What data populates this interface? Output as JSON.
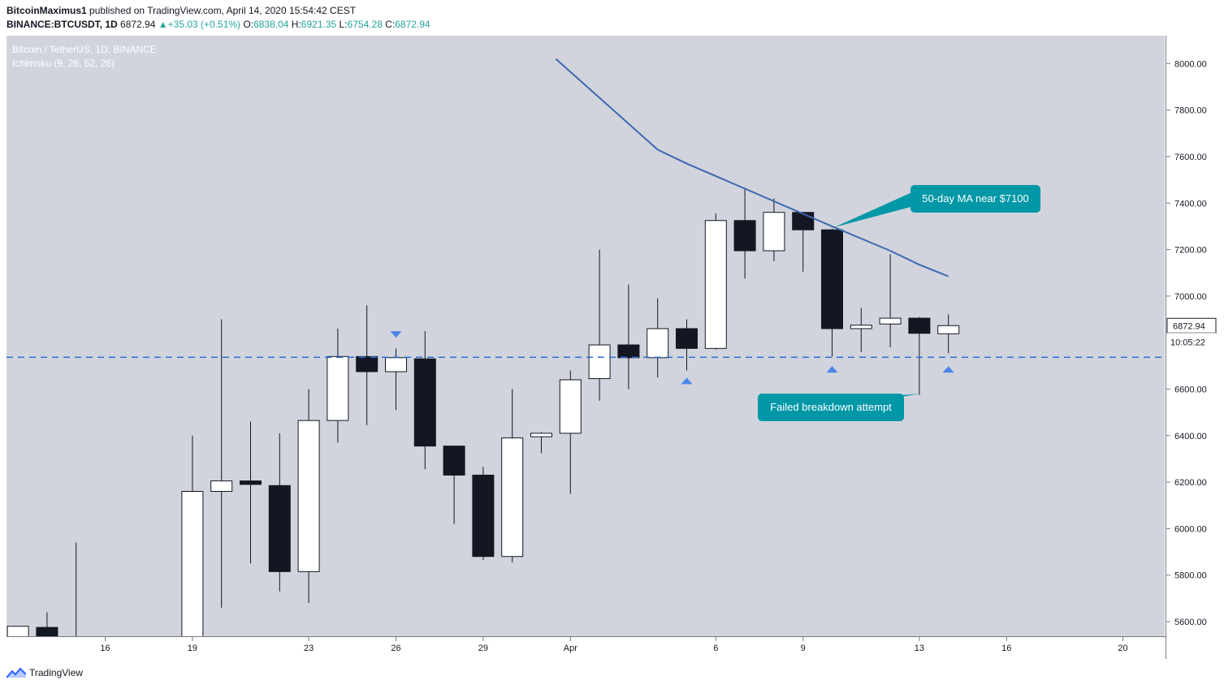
{
  "header": {
    "author": "BitcoinMaximus1",
    "published_text": "published on TradingView.com, April 14, 2020 15:54:42 CEST",
    "symbol": "BINANCE:BTCUSDT, 1D",
    "last": "6872.94",
    "change": "+35.03 (+0.51%)",
    "o_label": "O:",
    "o": "6838.04",
    "h_label": "H:",
    "h": "6921.35",
    "l_label": "L:",
    "l": "6754.28",
    "c_label": "C:",
    "c": "6872.94"
  },
  "legend": {
    "title": "Bitcoin / TetherUS, 1D, BINANCE",
    "indicator": "Ichimoku (9, 26, 52, 26)"
  },
  "footer": {
    "brand": "TradingView"
  },
  "colors": {
    "background": "#d1d4dc",
    "bull": "#ffffff",
    "bear": "#131722",
    "ma": "#3d69b0",
    "support": "#2f6fd6",
    "callout": "#0097a7",
    "marker": "#4a86e8"
  },
  "chart_data": {
    "type": "candlestick",
    "title": "Bitcoin / TetherUS, 1D, BINANCE",
    "ylim": [
      5430,
      8020
    ],
    "y_ticks": [
      "8000.00",
      "7800.00",
      "7600.00",
      "7400.00",
      "7200.00",
      "7000.00",
      "6600.00",
      "6400.00",
      "6200.00",
      "6000.00",
      "5800.00",
      "5600.00"
    ],
    "x_ticks": [
      {
        "label": "16",
        "x": -1
      },
      {
        "label": "19",
        "x": 2
      },
      {
        "label": "23",
        "x": 6
      },
      {
        "label": "26",
        "x": 9
      },
      {
        "label": "29",
        "x": 12
      },
      {
        "label": "Apr",
        "x": 15
      },
      {
        "label": "6",
        "x": 20
      },
      {
        "label": "9",
        "x": 23
      },
      {
        "label": "13",
        "x": 27
      },
      {
        "label": "16",
        "x": 30
      },
      {
        "label": "20",
        "x": 34
      }
    ],
    "candles": [
      {
        "x": -4,
        "o": 5430,
        "h": 5580,
        "l": 5430,
        "c": 5580
      },
      {
        "x": -3,
        "o": 5575,
        "h": 5640,
        "l": 5430,
        "c": 5430
      },
      {
        "x": -2,
        "o": 5430,
        "h": 5940,
        "l": 5430,
        "c": 5430
      },
      {
        "x": 0,
        "o": 5430,
        "h": 5525,
        "l": 5430,
        "c": 5430
      },
      {
        "x": 2,
        "o": 5430,
        "h": 6400,
        "l": 5430,
        "c": 6160
      },
      {
        "x": 3,
        "o": 6160,
        "h": 6900,
        "l": 5660,
        "c": 6205
      },
      {
        "x": 4,
        "o": 6205,
        "h": 6460,
        "l": 5850,
        "c": 6190
      },
      {
        "x": 5,
        "o": 6185,
        "h": 6410,
        "l": 5730,
        "c": 5815
      },
      {
        "x": 6,
        "o": 5815,
        "h": 6600,
        "l": 5680,
        "c": 6465
      },
      {
        "x": 7,
        "o": 6465,
        "h": 6860,
        "l": 6370,
        "c": 6740
      },
      {
        "x": 8,
        "o": 6740,
        "h": 6960,
        "l": 6445,
        "c": 6675
      },
      {
        "x": 9,
        "o": 6675,
        "h": 6775,
        "l": 6510,
        "c": 6735
      },
      {
        "x": 10,
        "o": 6730,
        "h": 6850,
        "l": 6255,
        "c": 6355
      },
      {
        "x": 11,
        "o": 6355,
        "h": 6355,
        "l": 6020,
        "c": 6230
      },
      {
        "x": 12,
        "o": 6230,
        "h": 6265,
        "l": 5865,
        "c": 5880
      },
      {
        "x": 13,
        "o": 5880,
        "h": 6600,
        "l": 5855,
        "c": 6390
      },
      {
        "x": 14,
        "o": 6395,
        "h": 6415,
        "l": 6325,
        "c": 6410
      },
      {
        "x": 15,
        "o": 6410,
        "h": 6680,
        "l": 6150,
        "c": 6640
      },
      {
        "x": 16,
        "o": 6645,
        "h": 7200,
        "l": 6550,
        "c": 6790
      },
      {
        "x": 17,
        "o": 6790,
        "h": 7050,
        "l": 6600,
        "c": 6735
      },
      {
        "x": 18,
        "o": 6735,
        "h": 6990,
        "l": 6650,
        "c": 6860
      },
      {
        "x": 19,
        "o": 6860,
        "h": 6900,
        "l": 6680,
        "c": 6775
      },
      {
        "x": 20,
        "o": 6775,
        "h": 7355,
        "l": 6770,
        "c": 7325
      },
      {
        "x": 21,
        "o": 7325,
        "h": 7465,
        "l": 7075,
        "c": 7195
      },
      {
        "x": 22,
        "o": 7195,
        "h": 7420,
        "l": 7150,
        "c": 7360
      },
      {
        "x": 23,
        "o": 7360,
        "h": 7360,
        "l": 7105,
        "c": 7285
      },
      {
        "x": 24,
        "o": 7285,
        "h": 7290,
        "l": 6740,
        "c": 6860
      },
      {
        "x": 25,
        "o": 6860,
        "h": 6950,
        "l": 6760,
        "c": 6875
      },
      {
        "x": 26,
        "o": 6880,
        "h": 7180,
        "l": 6780,
        "c": 6905
      },
      {
        "x": 27,
        "o": 6905,
        "h": 6910,
        "l": 6575,
        "c": 6840
      },
      {
        "x": 28,
        "o": 6838.04,
        "h": 6921.35,
        "l": 6754.28,
        "c": 6872.94
      }
    ],
    "moving_average": {
      "name": "50-day MA",
      "points": [
        [
          14.5,
          8020
        ],
        [
          18,
          7630
        ],
        [
          19,
          7570
        ],
        [
          24,
          7300
        ],
        [
          26,
          7195
        ],
        [
          27,
          7135
        ],
        [
          28,
          7085
        ]
      ]
    },
    "support_level": 6737,
    "markers": [
      {
        "x": 9,
        "y": 6835,
        "dir": "down"
      },
      {
        "x": 19,
        "y": 6635,
        "dir": "up"
      },
      {
        "x": 24,
        "y": 6685,
        "dir": "up"
      },
      {
        "x": 28,
        "y": 6685,
        "dir": "up"
      }
    ],
    "annotations": [
      {
        "text": "50-day MA near $7100",
        "target": [
          24,
          7300
        ]
      },
      {
        "text": "Failed breakdown attempt",
        "target": [
          27,
          6580
        ]
      }
    ],
    "price_label": "6872.94",
    "countdown": "10:05:22"
  }
}
